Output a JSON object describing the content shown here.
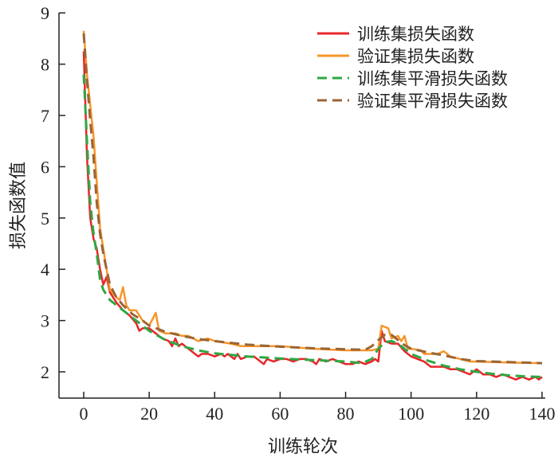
{
  "chart_data": {
    "type": "line",
    "title": "",
    "xlabel": "训练轮次",
    "ylabel": "损失函数值",
    "xlim": [
      -7,
      140
    ],
    "ylim": [
      1.49,
      9
    ],
    "xticks": [
      0,
      20,
      40,
      60,
      80,
      100,
      120,
      140
    ],
    "yticks": [
      2,
      3,
      4,
      5,
      6,
      7,
      8,
      9
    ],
    "grid": false,
    "legend_position": "top-right",
    "series": [
      {
        "name": "训练集损失函数",
        "color": "#e8262a",
        "dash": false,
        "x": [
          0,
          1,
          2,
          3,
          4,
          5,
          6,
          7,
          8,
          10,
          12,
          14,
          16,
          17,
          18,
          20,
          22,
          24,
          26,
          27,
          28,
          29,
          30,
          32,
          34,
          35,
          36,
          38,
          40,
          42,
          43,
          44,
          46,
          47,
          48,
          50,
          52,
          54,
          55,
          56,
          58,
          60,
          62,
          64,
          66,
          68,
          70,
          71,
          72,
          74,
          76,
          78,
          80,
          82,
          84,
          86,
          88,
          89,
          90,
          91,
          92,
          94,
          96,
          98,
          100,
          102,
          104,
          106,
          108,
          110,
          112,
          114,
          116,
          118,
          120,
          122,
          124,
          126,
          128,
          130,
          132,
          134,
          136,
          138,
          139,
          140
        ],
        "y": [
          8.25,
          6.2,
          5.0,
          4.6,
          4.4,
          4.0,
          3.7,
          3.85,
          3.55,
          3.35,
          3.2,
          3.1,
          2.95,
          2.8,
          2.85,
          2.85,
          2.75,
          2.65,
          2.6,
          2.5,
          2.65,
          2.5,
          2.55,
          2.45,
          2.35,
          2.3,
          2.35,
          2.35,
          2.3,
          2.35,
          2.3,
          2.35,
          2.25,
          2.35,
          2.25,
          2.3,
          2.3,
          2.2,
          2.15,
          2.25,
          2.2,
          2.25,
          2.25,
          2.2,
          2.25,
          2.25,
          2.2,
          2.15,
          2.25,
          2.2,
          2.25,
          2.2,
          2.15,
          2.15,
          2.2,
          2.15,
          2.2,
          2.25,
          2.2,
          2.8,
          2.6,
          2.55,
          2.55,
          2.4,
          2.3,
          2.25,
          2.2,
          2.1,
          2.1,
          2.1,
          2.05,
          2.05,
          2.0,
          1.95,
          2.05,
          1.95,
          1.95,
          1.9,
          1.95,
          1.9,
          1.85,
          1.9,
          1.85,
          1.9,
          1.85,
          1.9
        ]
      },
      {
        "name": "验证集损失函数",
        "color": "#f7952a",
        "dash": false,
        "x": [
          0,
          1,
          2,
          3,
          4,
          5,
          6,
          7,
          8,
          10,
          11,
          12,
          13,
          14,
          16,
          18,
          20,
          22,
          23,
          25,
          28,
          30,
          32,
          35,
          38,
          40,
          45,
          48,
          50,
          55,
          60,
          70,
          80,
          88,
          90,
          91,
          93,
          94,
          96,
          97,
          98,
          99,
          100,
          103,
          104,
          106,
          108,
          110,
          112,
          115,
          118,
          120,
          130,
          140
        ],
        "y": [
          8.65,
          7.8,
          7.2,
          6.6,
          5.7,
          4.8,
          4.4,
          4.0,
          3.6,
          3.45,
          3.4,
          3.65,
          3.3,
          3.2,
          3.2,
          3.0,
          2.9,
          3.15,
          2.8,
          2.75,
          2.75,
          2.7,
          2.7,
          2.6,
          2.65,
          2.6,
          2.55,
          2.5,
          2.5,
          2.5,
          2.5,
          2.45,
          2.42,
          2.42,
          2.45,
          2.9,
          2.85,
          2.65,
          2.7,
          2.6,
          2.7,
          2.45,
          2.45,
          2.42,
          2.35,
          2.35,
          2.35,
          2.4,
          2.3,
          2.25,
          2.2,
          2.2,
          2.18,
          2.17
        ]
      },
      {
        "name": "训练集平滑损失函数",
        "color": "#2ea843",
        "dash": true,
        "x": [
          0,
          1,
          2,
          3,
          4,
          5,
          6,
          8,
          10,
          12,
          15,
          18,
          20,
          25,
          30,
          35,
          40,
          50,
          60,
          70,
          80,
          85,
          88,
          90,
          92,
          94,
          96,
          98,
          100,
          105,
          110,
          115,
          120,
          125,
          130,
          135,
          140
        ],
        "y": [
          7.8,
          6.5,
          5.3,
          4.7,
          4.3,
          3.8,
          3.6,
          3.4,
          3.3,
          3.2,
          3.05,
          2.9,
          2.8,
          2.62,
          2.5,
          2.42,
          2.36,
          2.3,
          2.26,
          2.23,
          2.2,
          2.17,
          2.25,
          2.45,
          2.58,
          2.6,
          2.55,
          2.45,
          2.35,
          2.22,
          2.12,
          2.05,
          2.0,
          1.96,
          1.93,
          1.91,
          1.9
        ]
      },
      {
        "name": "验证集平滑损失函数",
        "color": "#9b6535",
        "dash": true,
        "x": [
          0,
          1,
          2,
          3,
          4,
          5,
          6,
          7,
          8,
          10,
          12,
          15,
          18,
          20,
          25,
          30,
          35,
          40,
          50,
          60,
          70,
          80,
          86,
          88,
          90,
          92,
          94,
          96,
          98,
          100,
          105,
          110,
          115,
          120,
          125,
          130,
          140
        ],
        "y": [
          8.6,
          7.7,
          6.9,
          6.2,
          5.3,
          4.7,
          4.3,
          4.0,
          3.7,
          3.45,
          3.3,
          3.12,
          3.0,
          2.9,
          2.78,
          2.7,
          2.64,
          2.6,
          2.53,
          2.49,
          2.46,
          2.44,
          2.43,
          2.5,
          2.62,
          2.72,
          2.72,
          2.62,
          2.52,
          2.45,
          2.38,
          2.32,
          2.25,
          2.21,
          2.2,
          2.19,
          2.17
        ]
      }
    ]
  }
}
